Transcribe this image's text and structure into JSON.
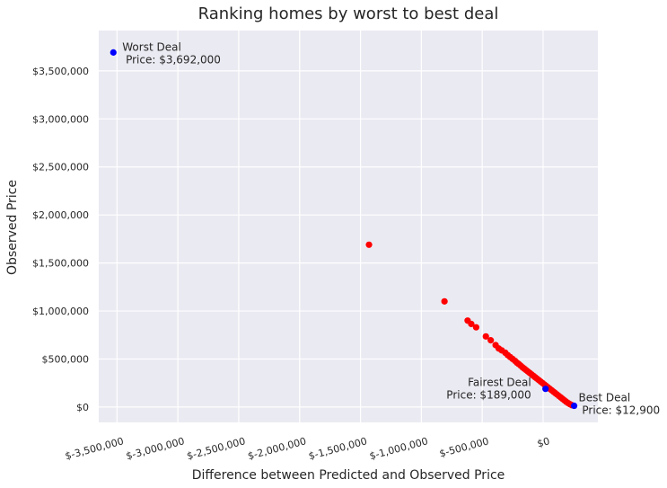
{
  "chart_data": {
    "type": "scatter",
    "title": "Ranking homes by worst to best deal",
    "xlabel": "Difference between Predicted and Observed Price",
    "ylabel": "Observed Price",
    "xlim": [
      -3650000,
      450000
    ],
    "ylim": [
      -160000,
      3920000
    ],
    "grid": true,
    "x_ticks": [
      {
        "value": -3500000,
        "label": "$-3,500,000"
      },
      {
        "value": -3000000,
        "label": "$-3,000,000"
      },
      {
        "value": -2500000,
        "label": "$-2,500,000"
      },
      {
        "value": -2000000,
        "label": "$-2,000,000"
      },
      {
        "value": -1500000,
        "label": "$-1,500,000"
      },
      {
        "value": -1000000,
        "label": "$-1,000,000"
      },
      {
        "value": -500000,
        "label": "$-500,000"
      },
      {
        "value": 0,
        "label": "$0"
      }
    ],
    "y_ticks": [
      {
        "value": 0,
        "label": "$0"
      },
      {
        "value": 500000,
        "label": "$500,000"
      },
      {
        "value": 1000000,
        "label": "$1,000,000"
      },
      {
        "value": 1500000,
        "label": "$1,500,000"
      },
      {
        "value": 2000000,
        "label": "$2,000,000"
      },
      {
        "value": 2500000,
        "label": "$2,500,000"
      },
      {
        "value": 3000000,
        "label": "$3,000,000"
      },
      {
        "value": 3500000,
        "label": "$3,500,000"
      }
    ],
    "series": [
      {
        "color": "#ff0000",
        "points": [
          [
            -1430000,
            1690000
          ],
          [
            -810000,
            1100000
          ],
          [
            -620000,
            900000
          ],
          [
            -590000,
            865000
          ],
          [
            -550000,
            830000
          ],
          [
            -470000,
            735000
          ],
          [
            -430000,
            695000
          ],
          [
            -390000,
            645000
          ],
          [
            -365000,
            610000
          ],
          [
            -340000,
            590000
          ],
          [
            -310000,
            565000
          ],
          [
            -290000,
            540000
          ],
          [
            -270000,
            520000
          ],
          [
            -250000,
            500000
          ],
          [
            -230000,
            480000
          ],
          [
            -215000,
            462000
          ],
          [
            -200000,
            448000
          ],
          [
            -185000,
            432000
          ],
          [
            -170000,
            415000
          ],
          [
            -155000,
            400000
          ],
          [
            -140000,
            385000
          ],
          [
            -125000,
            370000
          ],
          [
            -110000,
            355000
          ],
          [
            -95000,
            340000
          ],
          [
            -80000,
            325000
          ],
          [
            -65000,
            310000
          ],
          [
            -50000,
            295000
          ],
          [
            -35000,
            280000
          ],
          [
            -20000,
            265000
          ],
          [
            -5000,
            250000
          ],
          [
            10000,
            235000
          ],
          [
            25000,
            220000
          ],
          [
            40000,
            205000
          ],
          [
            55000,
            190000
          ],
          [
            70000,
            175000
          ],
          [
            85000,
            160000
          ],
          [
            100000,
            145000
          ],
          [
            115000,
            130000
          ],
          [
            130000,
            115000
          ],
          [
            145000,
            100000
          ],
          [
            160000,
            85000
          ],
          [
            175000,
            70000
          ],
          [
            190000,
            55000
          ],
          [
            205000,
            42000
          ],
          [
            220000,
            30000
          ],
          [
            235000,
            20000
          ]
        ]
      },
      {
        "color": "#0000ff",
        "points": [
          [
            -3530000,
            3692000
          ],
          [
            20000,
            189000
          ],
          [
            255000,
            12900
          ]
        ]
      }
    ],
    "annotations": [
      {
        "text": "Worst Deal\n Price: $3,692,000",
        "x": -3530000,
        "y": 3692000
      },
      {
        "text": "Fairest Deal\nPrice: $189,000",
        "x": 20000,
        "y": 189000
      },
      {
        "text": "Best Deal\n Price: $12,900",
        "x": 255000,
        "y": 12900
      }
    ]
  }
}
